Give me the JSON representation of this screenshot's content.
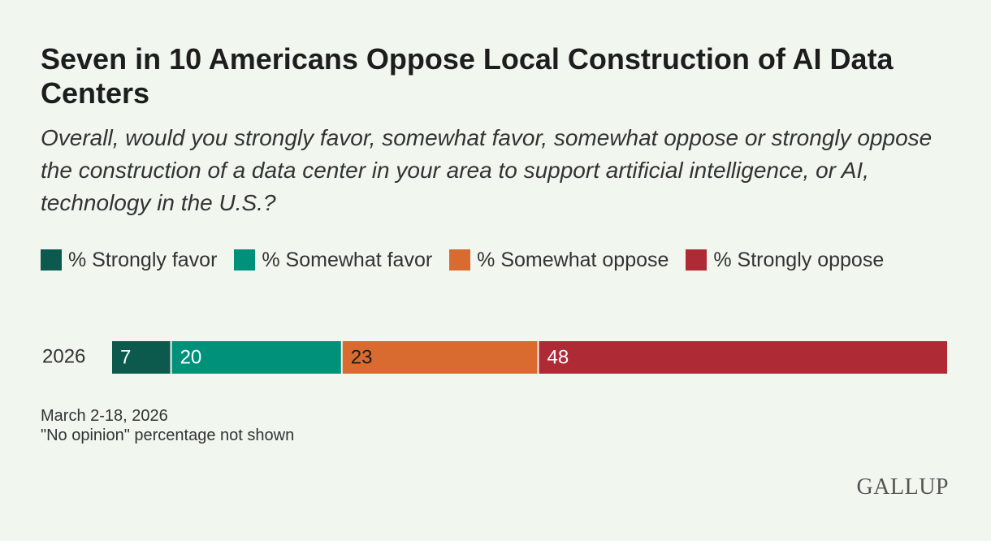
{
  "chart_data": {
    "type": "stacked-bar",
    "title": "Seven in 10 Americans Oppose Local Construction of AI Data Centers",
    "subtitle": "Overall, would you strongly favor, somewhat favor, somewhat oppose or strongly oppose the construction of a data center in your area to support artificial intelligence, or AI, technology in the U.S.?",
    "categories": [
      "2026"
    ],
    "series": [
      {
        "name": "% Strongly favor",
        "color": "#0b5a4d",
        "values": [
          7
        ]
      },
      {
        "name": "% Somewhat favor",
        "color": "#00917b",
        "values": [
          20
        ]
      },
      {
        "name": "% Somewhat oppose",
        "color": "#d96b31",
        "values": [
          23
        ]
      },
      {
        "name": "% Strongly oppose",
        "color": "#ae2a35",
        "values": [
          48
        ]
      }
    ],
    "notes": [
      "March 2-18, 2026",
      "\"No opinion\" percentage not shown"
    ],
    "source": "GALLUP"
  }
}
